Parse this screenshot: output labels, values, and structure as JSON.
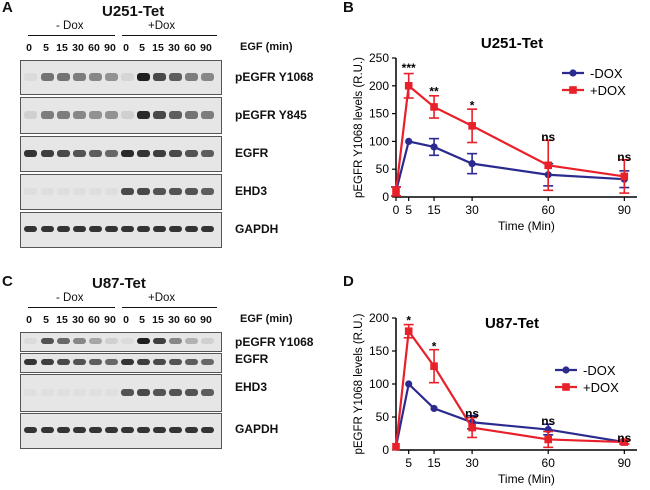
{
  "panels": {
    "a": {
      "letter": "A",
      "title": "U251-Tet",
      "condition_minus": "- Dox",
      "condition_plus": "+Dox",
      "lanes": [
        "0",
        "5",
        "15",
        "30",
        "60",
        "90",
        "0",
        "5",
        "15",
        "30",
        "60",
        "90"
      ],
      "egf_label": "EGF (min)",
      "bands": [
        "pEGFR Y1068",
        "pEGFR Y845",
        "EGFR",
        "EHD3",
        "GAPDH"
      ]
    },
    "c": {
      "letter": "C",
      "title": "U87-Tet",
      "condition_minus": "- Dox",
      "condition_plus": "+Dox",
      "lanes": [
        "0",
        "5",
        "15",
        "30",
        "60",
        "90",
        "0",
        "5",
        "15",
        "30",
        "60",
        "90"
      ],
      "egf_label": "EGF (min)",
      "bands": [
        "pEGFR Y1068",
        "EGFR",
        "EHD3",
        "GAPDH"
      ]
    },
    "b": {
      "letter": "B"
    },
    "d": {
      "letter": "D"
    }
  },
  "colors": {
    "dox_minus": "#2b2b8f",
    "dox_plus": "#e8202a"
  },
  "chart_data": [
    {
      "type": "line",
      "title": "U251-Tet",
      "xlabel": "Time (Min)",
      "ylabel": "pEGFR Y1068 levels (R.U.)",
      "xlim": [
        0,
        95
      ],
      "ylim": [
        0,
        250
      ],
      "x_ticks": [
        0,
        5,
        15,
        30,
        60,
        90
      ],
      "y_ticks": [
        0,
        50,
        100,
        150,
        200,
        250
      ],
      "x": [
        0,
        5,
        15,
        30,
        60,
        90
      ],
      "series": [
        {
          "name": "-DOX",
          "color": "#2b2b8f",
          "marker": "circle",
          "values": [
            10,
            100,
            90,
            60,
            40,
            32
          ],
          "errors": [
            8,
            0,
            15,
            18,
            20,
            15
          ]
        },
        {
          "name": "+DOX",
          "color": "#e8202a",
          "marker": "square",
          "values": [
            10,
            200,
            162,
            128,
            57,
            37
          ],
          "errors": [
            8,
            22,
            20,
            30,
            45,
            30
          ]
        }
      ],
      "annotations": [
        {
          "x": 5,
          "y": 232,
          "text": "***"
        },
        {
          "x": 15,
          "y": 190,
          "text": "**"
        },
        {
          "x": 30,
          "y": 165,
          "text": "*"
        },
        {
          "x": 60,
          "y": 108,
          "text": "ns"
        },
        {
          "x": 90,
          "y": 72,
          "text": "ns"
        }
      ],
      "legend": "top-right"
    },
    {
      "type": "line",
      "title": "U87-Tet",
      "xlabel": "Time (Min)",
      "ylabel": "pEGFR Y1068 levels (R.U.)",
      "xlim": [
        0,
        95
      ],
      "ylim": [
        0,
        200
      ],
      "x_ticks": [
        5,
        15,
        30,
        60,
        90
      ],
      "y_ticks": [
        0,
        50,
        100,
        150,
        200
      ],
      "x": [
        0,
        5,
        15,
        30,
        60,
        90
      ],
      "series": [
        {
          "name": "-DOX",
          "color": "#2b2b8f",
          "marker": "circle",
          "values": [
            5,
            100,
            63,
            42,
            31,
            12
          ],
          "errors": [
            0,
            0,
            0,
            10,
            8,
            3
          ]
        },
        {
          "name": "+DOX",
          "color": "#e8202a",
          "marker": "square",
          "values": [
            5,
            180,
            127,
            34,
            16,
            12
          ],
          "errors": [
            0,
            10,
            25,
            15,
            12,
            3
          ]
        }
      ],
      "annotations": [
        {
          "x": 5,
          "y": 196,
          "text": "*"
        },
        {
          "x": 15,
          "y": 157,
          "text": "*"
        },
        {
          "x": 30,
          "y": 55,
          "text": "ns"
        },
        {
          "x": 60,
          "y": 44,
          "text": "ns"
        },
        {
          "x": 90,
          "y": 18,
          "text": "ns"
        }
      ],
      "legend": "top-right"
    }
  ]
}
